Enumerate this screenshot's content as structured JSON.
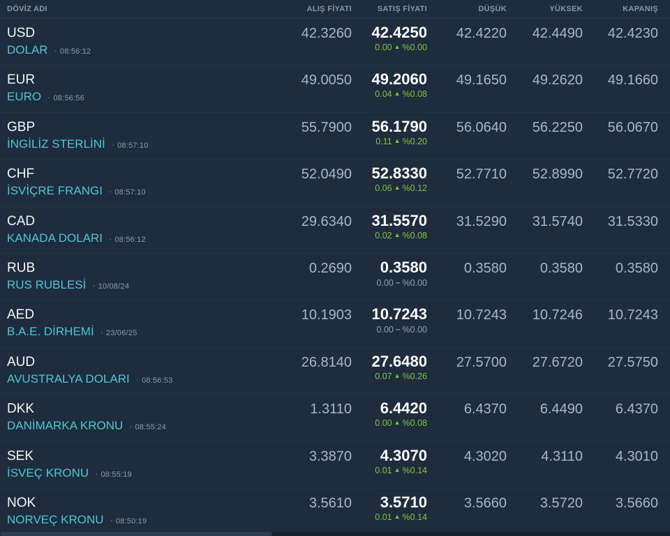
{
  "header": {
    "columns": [
      "DÖVİZ ADI",
      "ALIŞ FİYATI",
      "SATIŞ FİYATI",
      "DÜŞÜK",
      "YÜKSEK",
      "KAPANIŞ"
    ]
  },
  "glyphs": {
    "bullet": "·",
    "up": "▲",
    "flat": "–"
  },
  "colors": {
    "background": "#1e2c3d",
    "accent_teal": "#4cc8d5",
    "up_green": "#84c341",
    "flat_gray": "#8ea2b8",
    "value_text": "#a3b8ce",
    "sell_text": "#fcfdfe"
  },
  "rows": [
    {
      "code": "USD",
      "name": "DOLAR",
      "time": "08:56:12",
      "alis": "42.3260",
      "satis": "42.4250",
      "change": "0.00",
      "change_pct": "%0.00",
      "direction": "up",
      "dusuk": "42.4220",
      "yuksek": "42.4490",
      "kapanis": "42.4230"
    },
    {
      "code": "EUR",
      "name": "EURO",
      "time": "08:56:56",
      "alis": "49.0050",
      "satis": "49.2060",
      "change": "0.04",
      "change_pct": "%0.08",
      "direction": "up",
      "dusuk": "49.1650",
      "yuksek": "49.2620",
      "kapanis": "49.1660"
    },
    {
      "code": "GBP",
      "name": "İNGİLİZ STERLİNİ",
      "time": "08:57:10",
      "alis": "55.7900",
      "satis": "56.1790",
      "change": "0.11",
      "change_pct": "%0.20",
      "direction": "up",
      "dusuk": "56.0640",
      "yuksek": "56.2250",
      "kapanis": "56.0670"
    },
    {
      "code": "CHF",
      "name": "İSVİÇRE FRANGI",
      "time": "08:57:10",
      "alis": "52.0490",
      "satis": "52.8330",
      "change": "0.06",
      "change_pct": "%0.12",
      "direction": "up",
      "dusuk": "52.7710",
      "yuksek": "52.8990",
      "kapanis": "52.7720"
    },
    {
      "code": "CAD",
      "name": "KANADA DOLARI",
      "time": "08:56:12",
      "alis": "29.6340",
      "satis": "31.5570",
      "change": "0.02",
      "change_pct": "%0.08",
      "direction": "up",
      "dusuk": "31.5290",
      "yuksek": "31.5740",
      "kapanis": "31.5330"
    },
    {
      "code": "RUB",
      "name": "RUS RUBLESİ",
      "time": "10/08/24",
      "alis": "0.2690",
      "satis": "0.3580",
      "change": "0.00",
      "change_pct": "%0.00",
      "direction": "flat",
      "dusuk": "0.3580",
      "yuksek": "0.3580",
      "kapanis": "0.3580"
    },
    {
      "code": "AED",
      "name": "B.A.E. DİRHEMİ",
      "time": "23/06/25",
      "alis": "10.1903",
      "satis": "10.7243",
      "change": "0.00",
      "change_pct": "%0.00",
      "direction": "flat",
      "dusuk": "10.7243",
      "yuksek": "10.7246",
      "kapanis": "10.7243"
    },
    {
      "code": "AUD",
      "name": "AVUSTRALYA DOLARI",
      "time": "08:56:53",
      "alis": "26.8140",
      "satis": "27.6480",
      "change": "0.07",
      "change_pct": "%0.26",
      "direction": "up",
      "dusuk": "27.5700",
      "yuksek": "27.6720",
      "kapanis": "27.5750"
    },
    {
      "code": "DKK",
      "name": "DANİMARKA KRONU",
      "time": "08:55:24",
      "alis": "1.3110",
      "satis": "6.4420",
      "change": "0.00",
      "change_pct": "%0.08",
      "direction": "up",
      "dusuk": "6.4370",
      "yuksek": "6.4490",
      "kapanis": "6.4370"
    },
    {
      "code": "SEK",
      "name": "İSVEÇ KRONU",
      "time": "08:55:19",
      "alis": "3.3870",
      "satis": "4.3070",
      "change": "0.01",
      "change_pct": "%0.14",
      "direction": "up",
      "dusuk": "4.3020",
      "yuksek": "4.3110",
      "kapanis": "4.3010"
    },
    {
      "code": "NOK",
      "name": "NORVEÇ KRONU",
      "time": "08:50:19",
      "alis": "3.5610",
      "satis": "3.5710",
      "change": "0.01",
      "change_pct": "%0.14",
      "direction": "up",
      "dusuk": "3.5660",
      "yuksek": "3.5720",
      "kapanis": "3.5660"
    }
  ]
}
